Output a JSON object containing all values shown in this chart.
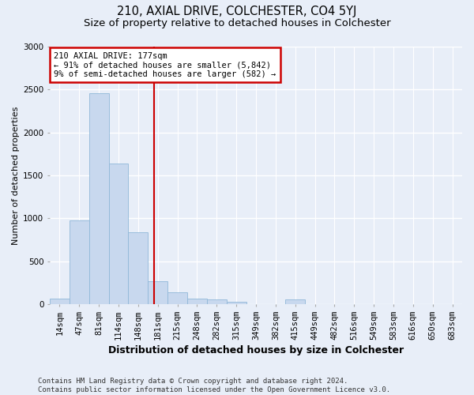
{
  "title": "210, AXIAL DRIVE, COLCHESTER, CO4 5YJ",
  "subtitle": "Size of property relative to detached houses in Colchester",
  "xlabel": "Distribution of detached houses by size in Colchester",
  "ylabel": "Number of detached properties",
  "footer_line1": "Contains HM Land Registry data © Crown copyright and database right 2024.",
  "footer_line2": "Contains public sector information licensed under the Open Government Licence v3.0.",
  "annotation_line1": "210 AXIAL DRIVE: 177sqm",
  "annotation_line2": "← 91% of detached houses are smaller (5,842)",
  "annotation_line3": "9% of semi-detached houses are larger (582) →",
  "bar_labels": [
    "14sqm",
    "47sqm",
    "81sqm",
    "114sqm",
    "148sqm",
    "181sqm",
    "215sqm",
    "248sqm",
    "282sqm",
    "315sqm",
    "349sqm",
    "382sqm",
    "415sqm",
    "449sqm",
    "482sqm",
    "516sqm",
    "549sqm",
    "583sqm",
    "616sqm",
    "650sqm",
    "683sqm"
  ],
  "bar_values": [
    60,
    975,
    2460,
    1640,
    840,
    270,
    140,
    60,
    50,
    30,
    0,
    0,
    50,
    0,
    0,
    0,
    0,
    0,
    0,
    0,
    0
  ],
  "bar_color": "#c8d8ee",
  "bar_edge_color": "#90b8d8",
  "vline_color": "#cc0000",
  "vline_x": 4.82,
  "ylim": [
    0,
    3000
  ],
  "yticks": [
    0,
    500,
    1000,
    1500,
    2000,
    2500,
    3000
  ],
  "bg_color": "#e8eef8",
  "plot_bg_color": "#e8eef8",
  "grid_color": "#ffffff",
  "title_fontsize": 10.5,
  "subtitle_fontsize": 9.5,
  "ylabel_fontsize": 8,
  "xlabel_fontsize": 9,
  "tick_fontsize": 7.5,
  "annotation_box_color": "#cc0000",
  "annotation_fontsize": 7.5,
  "footer_fontsize": 6.5
}
